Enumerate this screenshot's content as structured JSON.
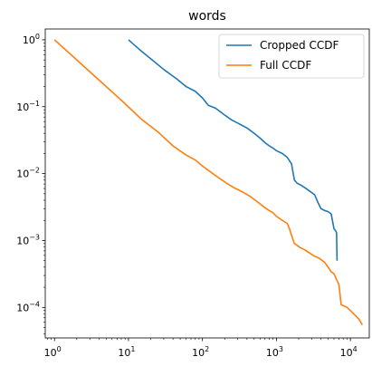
{
  "chart_data": {
    "type": "line",
    "title": "words",
    "xscale": "log",
    "yscale": "log",
    "xlim": [
      0.75,
      18000
    ],
    "ylim": [
      3.5e-05,
      1.45
    ],
    "xticks": [
      {
        "base": "10",
        "exp": "0",
        "value": 1
      },
      {
        "base": "10",
        "exp": "1",
        "value": 10
      },
      {
        "base": "10",
        "exp": "2",
        "value": 100
      },
      {
        "base": "10",
        "exp": "3",
        "value": 1000
      },
      {
        "base": "10",
        "exp": "4",
        "value": 10000
      }
    ],
    "yticks": [
      {
        "base": "10",
        "exp": "0",
        "value": 1
      },
      {
        "base": "10",
        "exp": "−1",
        "value": 0.1
      },
      {
        "base": "10",
        "exp": "−2",
        "value": 0.01
      },
      {
        "base": "10",
        "exp": "−3",
        "value": 0.001
      },
      {
        "base": "10",
        "exp": "−4",
        "value": 0.0001
      }
    ],
    "grid": false,
    "legend_position": "top-right",
    "series": [
      {
        "name": "Cropped CCDF",
        "color": "#1f77b4",
        "points": [
          [
            10,
            1.0
          ],
          [
            14,
            0.72
          ],
          [
            20,
            0.52
          ],
          [
            30,
            0.36
          ],
          [
            45,
            0.26
          ],
          [
            60,
            0.2
          ],
          [
            80,
            0.17
          ],
          [
            100,
            0.135
          ],
          [
            120,
            0.105
          ],
          [
            150,
            0.095
          ],
          [
            200,
            0.075
          ],
          [
            250,
            0.063
          ],
          [
            300,
            0.057
          ],
          [
            350,
            0.052
          ],
          [
            400,
            0.048
          ],
          [
            500,
            0.04
          ],
          [
            600,
            0.034
          ],
          [
            700,
            0.029
          ],
          [
            800,
            0.026
          ],
          [
            900,
            0.024
          ],
          [
            1000,
            0.022
          ],
          [
            1200,
            0.02
          ],
          [
            1400,
            0.0175
          ],
          [
            1600,
            0.014
          ],
          [
            1750,
            0.008
          ],
          [
            1900,
            0.0072
          ],
          [
            2100,
            0.0068
          ],
          [
            2400,
            0.0062
          ],
          [
            2800,
            0.0055
          ],
          [
            3000,
            0.0052
          ],
          [
            3300,
            0.0048
          ],
          [
            3600,
            0.0038
          ],
          [
            4000,
            0.003
          ],
          [
            4500,
            0.0028
          ],
          [
            5000,
            0.0027
          ],
          [
            5500,
            0.0025
          ],
          [
            6000,
            0.0015
          ],
          [
            6300,
            0.0014
          ],
          [
            6500,
            0.0013
          ],
          [
            6600,
            0.0005
          ]
        ]
      },
      {
        "name": "Full CCDF",
        "color": "#ff7f0e",
        "points": [
          [
            1,
            1.0
          ],
          [
            2,
            0.5
          ],
          [
            4,
            0.25
          ],
          [
            8,
            0.125
          ],
          [
            15,
            0.065
          ],
          [
            25,
            0.042
          ],
          [
            40,
            0.026
          ],
          [
            60,
            0.019
          ],
          [
            80,
            0.016
          ],
          [
            100,
            0.013
          ],
          [
            130,
            0.0105
          ],
          [
            170,
            0.0085
          ],
          [
            220,
            0.007
          ],
          [
            280,
            0.006
          ],
          [
            350,
            0.0053
          ],
          [
            450,
            0.0045
          ],
          [
            550,
            0.0038
          ],
          [
            700,
            0.0031
          ],
          [
            800,
            0.0028
          ],
          [
            900,
            0.0026
          ],
          [
            1000,
            0.0023
          ],
          [
            1200,
            0.002
          ],
          [
            1400,
            0.0018
          ],
          [
            1500,
            0.0015
          ],
          [
            1600,
            0.0012
          ],
          [
            1750,
            0.0009
          ],
          [
            1900,
            0.00085
          ],
          [
            2100,
            0.00078
          ],
          [
            2400,
            0.00073
          ],
          [
            2700,
            0.00067
          ],
          [
            3000,
            0.00062
          ],
          [
            3300,
            0.00058
          ],
          [
            3600,
            0.00056
          ],
          [
            4000,
            0.00052
          ],
          [
            4500,
            0.00047
          ],
          [
            5000,
            0.0004
          ],
          [
            5500,
            0.00034
          ],
          [
            6000,
            0.00032
          ],
          [
            6500,
            0.00026
          ],
          [
            7000,
            0.00022
          ],
          [
            7500,
            0.00011
          ],
          [
            9000,
            0.0001
          ],
          [
            11000,
            8.1e-05
          ],
          [
            13000,
            6.7e-05
          ],
          [
            14500,
            5.5e-05
          ]
        ]
      }
    ]
  }
}
